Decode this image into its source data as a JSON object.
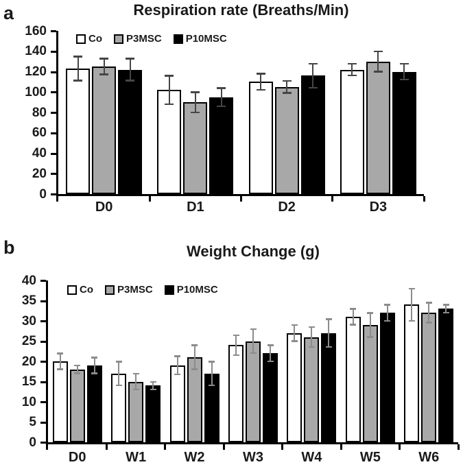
{
  "background": "#ffffff",
  "chart_data": [
    {
      "type": "bar",
      "panel_label": "a",
      "title": "Respiration rate (Breaths/Min)",
      "categories": [
        "D0",
        "D1",
        "D2",
        "D3"
      ],
      "series": [
        {
          "name": "Co",
          "fill": "#ffffff",
          "values": [
            123,
            102,
            110,
            122
          ],
          "errors": [
            12,
            14,
            8,
            6
          ]
        },
        {
          "name": "P3MSC",
          "fill": "#a8a8a8",
          "values": [
            125,
            90,
            105,
            130
          ],
          "errors": [
            8,
            10,
            6,
            10
          ]
        },
        {
          "name": "P10MSC",
          "fill": "#000000",
          "values": [
            122,
            95,
            116,
            120
          ],
          "errors": [
            11,
            9,
            12,
            8
          ]
        }
      ],
      "xlabel": "",
      "ylabel": "",
      "ylim": [
        0,
        160
      ],
      "ytick_step": 20,
      "ytick_labels": [
        "0",
        "20",
        "40",
        "60",
        "80",
        "100",
        "120",
        "140",
        "160"
      ],
      "grid": false,
      "legend_position": "top-left-inside",
      "bar_border_color": "#000000",
      "error_bar_color": "#454545"
    },
    {
      "type": "bar",
      "panel_label": "b",
      "title": "Weight Change (g)",
      "categories": [
        "D0",
        "W1",
        "W2",
        "W3",
        "W4",
        "W5",
        "W6"
      ],
      "series": [
        {
          "name": "Co",
          "fill": "#ffffff",
          "values": [
            20,
            17,
            19,
            24,
            27,
            31,
            34
          ],
          "errors": [
            2,
            3,
            2.3,
            2.5,
            2,
            2,
            4
          ]
        },
        {
          "name": "P3MSC",
          "fill": "#a8a8a8",
          "values": [
            18,
            15,
            21,
            25,
            26,
            29,
            32
          ],
          "errors": [
            1,
            2,
            3,
            3,
            2.5,
            3,
            2.5
          ]
        },
        {
          "name": "P10MSC",
          "fill": "#000000",
          "values": [
            19,
            14,
            17,
            22,
            27,
            32,
            33
          ],
          "errors": [
            2,
            1,
            3,
            2,
            3.5,
            2,
            1
          ]
        }
      ],
      "xlabel": "",
      "ylabel": "",
      "ylim": [
        0,
        40
      ],
      "ytick_step": 5,
      "ytick_labels": [
        "0",
        "5",
        "10",
        "15",
        "20",
        "25",
        "30",
        "35",
        "40"
      ],
      "grid": false,
      "legend_position": "top-left-inside",
      "bar_border_color": "#000000",
      "error_bar_color": "#8c8c8c"
    }
  ]
}
